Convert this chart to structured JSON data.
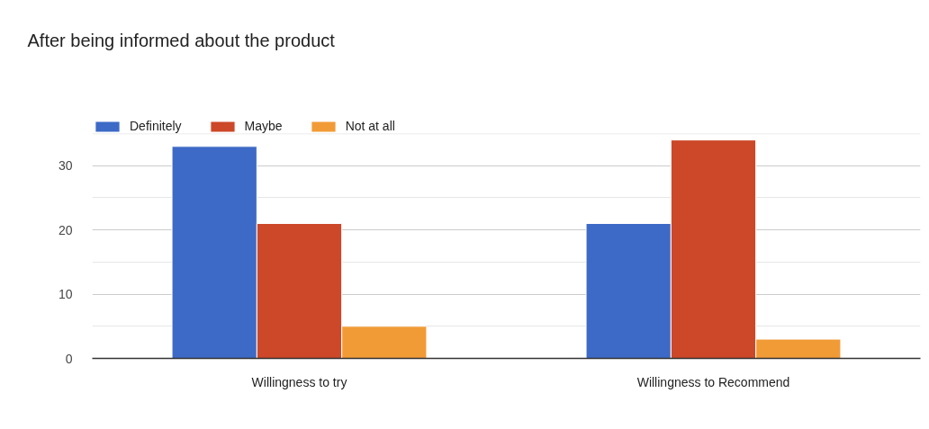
{
  "chart_data": {
    "type": "bar",
    "title": "After being informed about the product",
    "categories": [
      "Willingness to try",
      "Willingness to Recommend"
    ],
    "series": [
      {
        "name": "Definitely",
        "color": "#3d6ac6",
        "values": [
          33,
          21
        ]
      },
      {
        "name": "Maybe",
        "color": "#cc4829",
        "values": [
          21,
          34
        ]
      },
      {
        "name": "Not at all",
        "color": "#f19b37",
        "values": [
          5,
          3
        ]
      }
    ],
    "ylim": [
      0,
      35
    ],
    "yticks": [
      0,
      {
        "value": 5,
        "label": null
      },
      10,
      {
        "value": 15,
        "label": null
      },
      20,
      {
        "value": 25,
        "label": null
      },
      30,
      {
        "value": 35,
        "label": null
      }
    ],
    "grid": "y",
    "legend": "top left"
  }
}
